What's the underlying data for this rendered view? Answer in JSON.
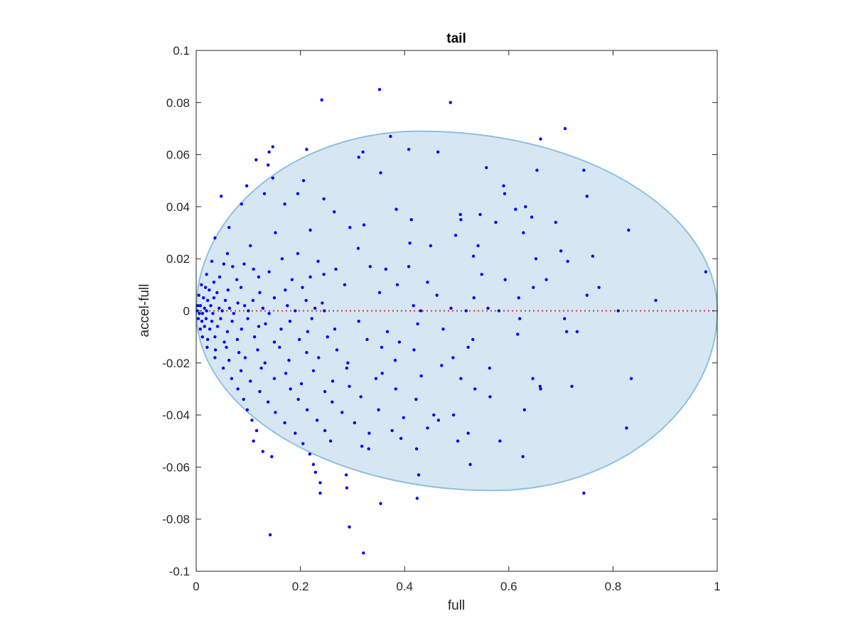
{
  "chart_data": {
    "type": "scatter",
    "title": "tail",
    "xlabel": "full",
    "ylabel": "accel-full",
    "xlim": [
      0,
      1
    ],
    "ylim": [
      -0.1,
      0.1
    ],
    "x_ticks": [
      "0",
      "0.2",
      "0.4",
      "0.6",
      "0.8",
      "1"
    ],
    "y_ticks": [
      "0.1",
      "0.08",
      "0.06",
      "0.04",
      "0.02",
      "0",
      "-0.02",
      "-0.04",
      "-0.06",
      "-0.08",
      "-0.1"
    ],
    "grid": false,
    "colors": {
      "points": "#0000ff",
      "ellipse_fill": "#d6e7f3",
      "ellipse_edge": "#8ec0e0",
      "zero_line": "#ff2a2a",
      "axes": "#262626"
    },
    "reference_line": {
      "y": 0,
      "style": "dotted",
      "color": "#ff2a2a"
    },
    "ellipse_region": {
      "upper_peak": [
        0.43,
        0.069
      ],
      "lower_peak": [
        0.57,
        -0.069
      ],
      "left_extent": 0.0,
      "right_extent": 1.0
    },
    "series": [
      {
        "points": [
          [
            0.352,
            0.085
          ],
          [
            0.241,
            0.081
          ],
          [
            0.488,
            0.08
          ],
          [
            0.708,
            0.07
          ],
          [
            0.373,
            0.067
          ],
          [
            0.661,
            0.066
          ],
          [
            0.147,
            0.063
          ],
          [
            0.14,
            0.061
          ],
          [
            0.212,
            0.062
          ],
          [
            0.32,
            0.061
          ],
          [
            0.408,
            0.062
          ],
          [
            0.464,
            0.061
          ],
          [
            0.115,
            0.058
          ],
          [
            0.312,
            0.059
          ],
          [
            0.138,
            0.056
          ],
          [
            0.557,
            0.055
          ],
          [
            0.744,
            0.054
          ],
          [
            0.354,
            0.053
          ],
          [
            0.654,
            0.054
          ],
          [
            0.147,
            0.051
          ],
          [
            0.206,
            0.05
          ],
          [
            0.59,
            0.048
          ],
          [
            0.097,
            0.048
          ],
          [
            0.592,
            0.045
          ],
          [
            0.75,
            0.044
          ],
          [
            0.131,
            0.045
          ],
          [
            0.195,
            0.045
          ],
          [
            0.245,
            0.043
          ],
          [
            0.048,
            0.044
          ],
          [
            0.17,
            0.041
          ],
          [
            0.087,
            0.041
          ],
          [
            0.632,
            0.04
          ],
          [
            0.384,
            0.039
          ],
          [
            0.265,
            0.038
          ],
          [
            0.507,
            0.037
          ],
          [
            0.545,
            0.037
          ],
          [
            0.613,
            0.039
          ],
          [
            0.413,
            0.035
          ],
          [
            0.508,
            0.035
          ],
          [
            0.575,
            0.034
          ],
          [
            0.644,
            0.036
          ],
          [
            0.69,
            0.034
          ],
          [
            0.83,
            0.031
          ],
          [
            0.295,
            0.032
          ],
          [
            0.322,
            0.033
          ],
          [
            0.219,
            0.031
          ],
          [
            0.063,
            0.032
          ],
          [
            0.152,
            0.03
          ],
          [
            0.036,
            0.028
          ],
          [
            0.104,
            0.025
          ],
          [
            0.41,
            0.026
          ],
          [
            0.45,
            0.025
          ],
          [
            0.498,
            0.029
          ],
          [
            0.541,
            0.025
          ],
          [
            0.628,
            0.03
          ],
          [
            0.7,
            0.023
          ],
          [
            0.761,
            0.021
          ],
          [
            0.06,
            0.022
          ],
          [
            0.195,
            0.022
          ],
          [
            0.311,
            0.024
          ],
          [
            0.03,
            0.019
          ],
          [
            0.053,
            0.018
          ],
          [
            0.07,
            0.017
          ],
          [
            0.092,
            0.018
          ],
          [
            0.11,
            0.016
          ],
          [
            0.14,
            0.015
          ],
          [
            0.165,
            0.02
          ],
          [
            0.234,
            0.019
          ],
          [
            0.268,
            0.016
          ],
          [
            0.334,
            0.017
          ],
          [
            0.364,
            0.016
          ],
          [
            0.408,
            0.017
          ],
          [
            0.532,
            0.021
          ],
          [
            0.652,
            0.02
          ],
          [
            0.713,
            0.019
          ],
          [
            0.978,
            0.015
          ],
          [
            0.02,
            0.014
          ],
          [
            0.034,
            0.011
          ],
          [
            0.045,
            0.013
          ],
          [
            0.078,
            0.012
          ],
          [
            0.12,
            0.013
          ],
          [
            0.184,
            0.012
          ],
          [
            0.219,
            0.013
          ],
          [
            0.245,
            0.014
          ],
          [
            0.548,
            0.014
          ],
          [
            0.672,
            0.012
          ],
          [
            0.01,
            0.01
          ],
          [
            0.018,
            0.009
          ],
          [
            0.025,
            0.008
          ],
          [
            0.04,
            0.007
          ],
          [
            0.061,
            0.008
          ],
          [
            0.086,
            0.009
          ],
          [
            0.122,
            0.007
          ],
          [
            0.171,
            0.008
          ],
          [
            0.204,
            0.009
          ],
          [
            0.285,
            0.01
          ],
          [
            0.386,
            0.01
          ],
          [
            0.444,
            0.011
          ],
          [
            0.593,
            0.012
          ],
          [
            0.647,
            0.009
          ],
          [
            0.773,
            0.009
          ],
          [
            0.005,
            0.006
          ],
          [
            0.014,
            0.005
          ],
          [
            0.022,
            0.004
          ],
          [
            0.034,
            0.005
          ],
          [
            0.056,
            0.004
          ],
          [
            0.08,
            0.003
          ],
          [
            0.109,
            0.004
          ],
          [
            0.15,
            0.005
          ],
          [
            0.211,
            0.004
          ],
          [
            0.242,
            0.003
          ],
          [
            0.352,
            0.007
          ],
          [
            0.462,
            0.006
          ],
          [
            0.533,
            0.005
          ],
          [
            0.619,
            0.005
          ],
          [
            0.75,
            0.006
          ],
          [
            0.882,
            0.004
          ],
          [
            0.003,
            0.002
          ],
          [
            0.008,
            0.002
          ],
          [
            0.016,
            0.001
          ],
          [
            0.028,
            0.002
          ],
          [
            0.044,
            0.001
          ],
          [
            0.064,
            0.001
          ],
          [
            0.093,
            0.002
          ],
          [
            0.128,
            0.001
          ],
          [
            0.175,
            0.002
          ],
          [
            0.228,
            0.001
          ],
          [
            0.417,
            0.002
          ],
          [
            0.489,
            0.001
          ],
          [
            0.56,
            0.001
          ],
          [
            0.002,
            0.0
          ],
          [
            0.006,
            -0.001
          ],
          [
            0.012,
            -0.001
          ],
          [
            0.02,
            0.0
          ],
          [
            0.032,
            -0.001
          ],
          [
            0.05,
            0.0
          ],
          [
            0.072,
            -0.001
          ],
          [
            0.1,
            0.0
          ],
          [
            0.14,
            -0.001
          ],
          [
            0.19,
            0.0
          ],
          [
            0.246,
            0.0
          ],
          [
            0.431,
            0.0
          ],
          [
            0.518,
            0.0
          ],
          [
            0.581,
            0.0
          ],
          [
            0.81,
            0.0
          ],
          [
            0.004,
            -0.003
          ],
          [
            0.011,
            -0.004
          ],
          [
            0.019,
            -0.003
          ],
          [
            0.03,
            -0.004
          ],
          [
            0.047,
            -0.003
          ],
          [
            0.069,
            -0.004
          ],
          [
            0.099,
            -0.003
          ],
          [
            0.133,
            -0.005
          ],
          [
            0.18,
            -0.004
          ],
          [
            0.222,
            -0.003
          ],
          [
            0.312,
            -0.004
          ],
          [
            0.425,
            -0.005
          ],
          [
            0.621,
            -0.003
          ],
          [
            0.707,
            -0.003
          ],
          [
            0.008,
            -0.007
          ],
          [
            0.016,
            -0.006
          ],
          [
            0.026,
            -0.007
          ],
          [
            0.041,
            -0.006
          ],
          [
            0.06,
            -0.008
          ],
          [
            0.087,
            -0.007
          ],
          [
            0.12,
            -0.006
          ],
          [
            0.163,
            -0.007
          ],
          [
            0.214,
            -0.008
          ],
          [
            0.266,
            -0.007
          ],
          [
            0.367,
            -0.008
          ],
          [
            0.474,
            -0.007
          ],
          [
            0.617,
            -0.009
          ],
          [
            0.711,
            -0.008
          ],
          [
            0.731,
            -0.008
          ],
          [
            0.012,
            -0.01
          ],
          [
            0.022,
            -0.011
          ],
          [
            0.036,
            -0.01
          ],
          [
            0.054,
            -0.012
          ],
          [
            0.079,
            -0.011
          ],
          [
            0.112,
            -0.01
          ],
          [
            0.15,
            -0.012
          ],
          [
            0.198,
            -0.011
          ],
          [
            0.252,
            -0.01
          ],
          [
            0.328,
            -0.011
          ],
          [
            0.39,
            -0.012
          ],
          [
            0.531,
            -0.011
          ],
          [
            0.021,
            -0.014
          ],
          [
            0.037,
            -0.015
          ],
          [
            0.058,
            -0.014
          ],
          [
            0.082,
            -0.016
          ],
          [
            0.118,
            -0.015
          ],
          [
            0.16,
            -0.014
          ],
          [
            0.212,
            -0.016
          ],
          [
            0.27,
            -0.015
          ],
          [
            0.356,
            -0.014
          ],
          [
            0.418,
            -0.015
          ],
          [
            0.522,
            -0.014
          ],
          [
            0.036,
            -0.018
          ],
          [
            0.063,
            -0.019
          ],
          [
            0.094,
            -0.018
          ],
          [
            0.132,
            -0.02
          ],
          [
            0.178,
            -0.019
          ],
          [
            0.235,
            -0.018
          ],
          [
            0.291,
            -0.02
          ],
          [
            0.382,
            -0.019
          ],
          [
            0.493,
            -0.018
          ],
          [
            0.052,
            -0.022
          ],
          [
            0.086,
            -0.023
          ],
          [
            0.125,
            -0.022
          ],
          [
            0.172,
            -0.024
          ],
          [
            0.225,
            -0.023
          ],
          [
            0.289,
            -0.022
          ],
          [
            0.357,
            -0.024
          ],
          [
            0.471,
            -0.021
          ],
          [
            0.563,
            -0.022
          ],
          [
            0.068,
            -0.026
          ],
          [
            0.104,
            -0.027
          ],
          [
            0.15,
            -0.026
          ],
          [
            0.202,
            -0.028
          ],
          [
            0.262,
            -0.027
          ],
          [
            0.345,
            -0.026
          ],
          [
            0.432,
            -0.025
          ],
          [
            0.508,
            -0.026
          ],
          [
            0.646,
            -0.026
          ],
          [
            0.835,
            -0.026
          ],
          [
            0.08,
            -0.03
          ],
          [
            0.122,
            -0.031
          ],
          [
            0.181,
            -0.03
          ],
          [
            0.247,
            -0.031
          ],
          [
            0.294,
            -0.029
          ],
          [
            0.383,
            -0.03
          ],
          [
            0.535,
            -0.03
          ],
          [
            0.66,
            -0.029
          ],
          [
            0.721,
            -0.029
          ],
          [
            0.091,
            -0.034
          ],
          [
            0.138,
            -0.035
          ],
          [
            0.196,
            -0.034
          ],
          [
            0.261,
            -0.035
          ],
          [
            0.316,
            -0.033
          ],
          [
            0.422,
            -0.034
          ],
          [
            0.564,
            -0.033
          ],
          [
            0.661,
            -0.03
          ],
          [
            0.098,
            -0.038
          ],
          [
            0.152,
            -0.039
          ],
          [
            0.213,
            -0.038
          ],
          [
            0.28,
            -0.039
          ],
          [
            0.35,
            -0.038
          ],
          [
            0.456,
            -0.04
          ],
          [
            0.494,
            -0.04
          ],
          [
            0.63,
            -0.038
          ],
          [
            0.107,
            -0.042
          ],
          [
            0.17,
            -0.043
          ],
          [
            0.232,
            -0.042
          ],
          [
            0.304,
            -0.043
          ],
          [
            0.398,
            -0.041
          ],
          [
            0.465,
            -0.042
          ],
          [
            0.826,
            -0.045
          ],
          [
            0.116,
            -0.046
          ],
          [
            0.19,
            -0.047
          ],
          [
            0.247,
            -0.046
          ],
          [
            0.332,
            -0.047
          ],
          [
            0.376,
            -0.046
          ],
          [
            0.444,
            -0.045
          ],
          [
            0.522,
            -0.047
          ],
          [
            0.11,
            -0.05
          ],
          [
            0.205,
            -0.051
          ],
          [
            0.258,
            -0.05
          ],
          [
            0.318,
            -0.052
          ],
          [
            0.393,
            -0.049
          ],
          [
            0.502,
            -0.05
          ],
          [
            0.583,
            -0.05
          ],
          [
            0.128,
            -0.054
          ],
          [
            0.145,
            -0.056
          ],
          [
            0.218,
            -0.055
          ],
          [
            0.331,
            -0.053
          ],
          [
            0.423,
            -0.053
          ],
          [
            0.627,
            -0.056
          ],
          [
            0.225,
            -0.059
          ],
          [
            0.526,
            -0.059
          ],
          [
            0.229,
            -0.062
          ],
          [
            0.288,
            -0.063
          ],
          [
            0.427,
            -0.063
          ],
          [
            0.238,
            -0.066
          ],
          [
            0.289,
            -0.068
          ],
          [
            0.238,
            -0.07
          ],
          [
            0.744,
            -0.07
          ],
          [
            0.424,
            -0.072
          ],
          [
            0.354,
            -0.074
          ],
          [
            0.294,
            -0.083
          ],
          [
            0.142,
            -0.086
          ],
          [
            0.321,
            -0.093
          ]
        ]
      }
    ]
  }
}
